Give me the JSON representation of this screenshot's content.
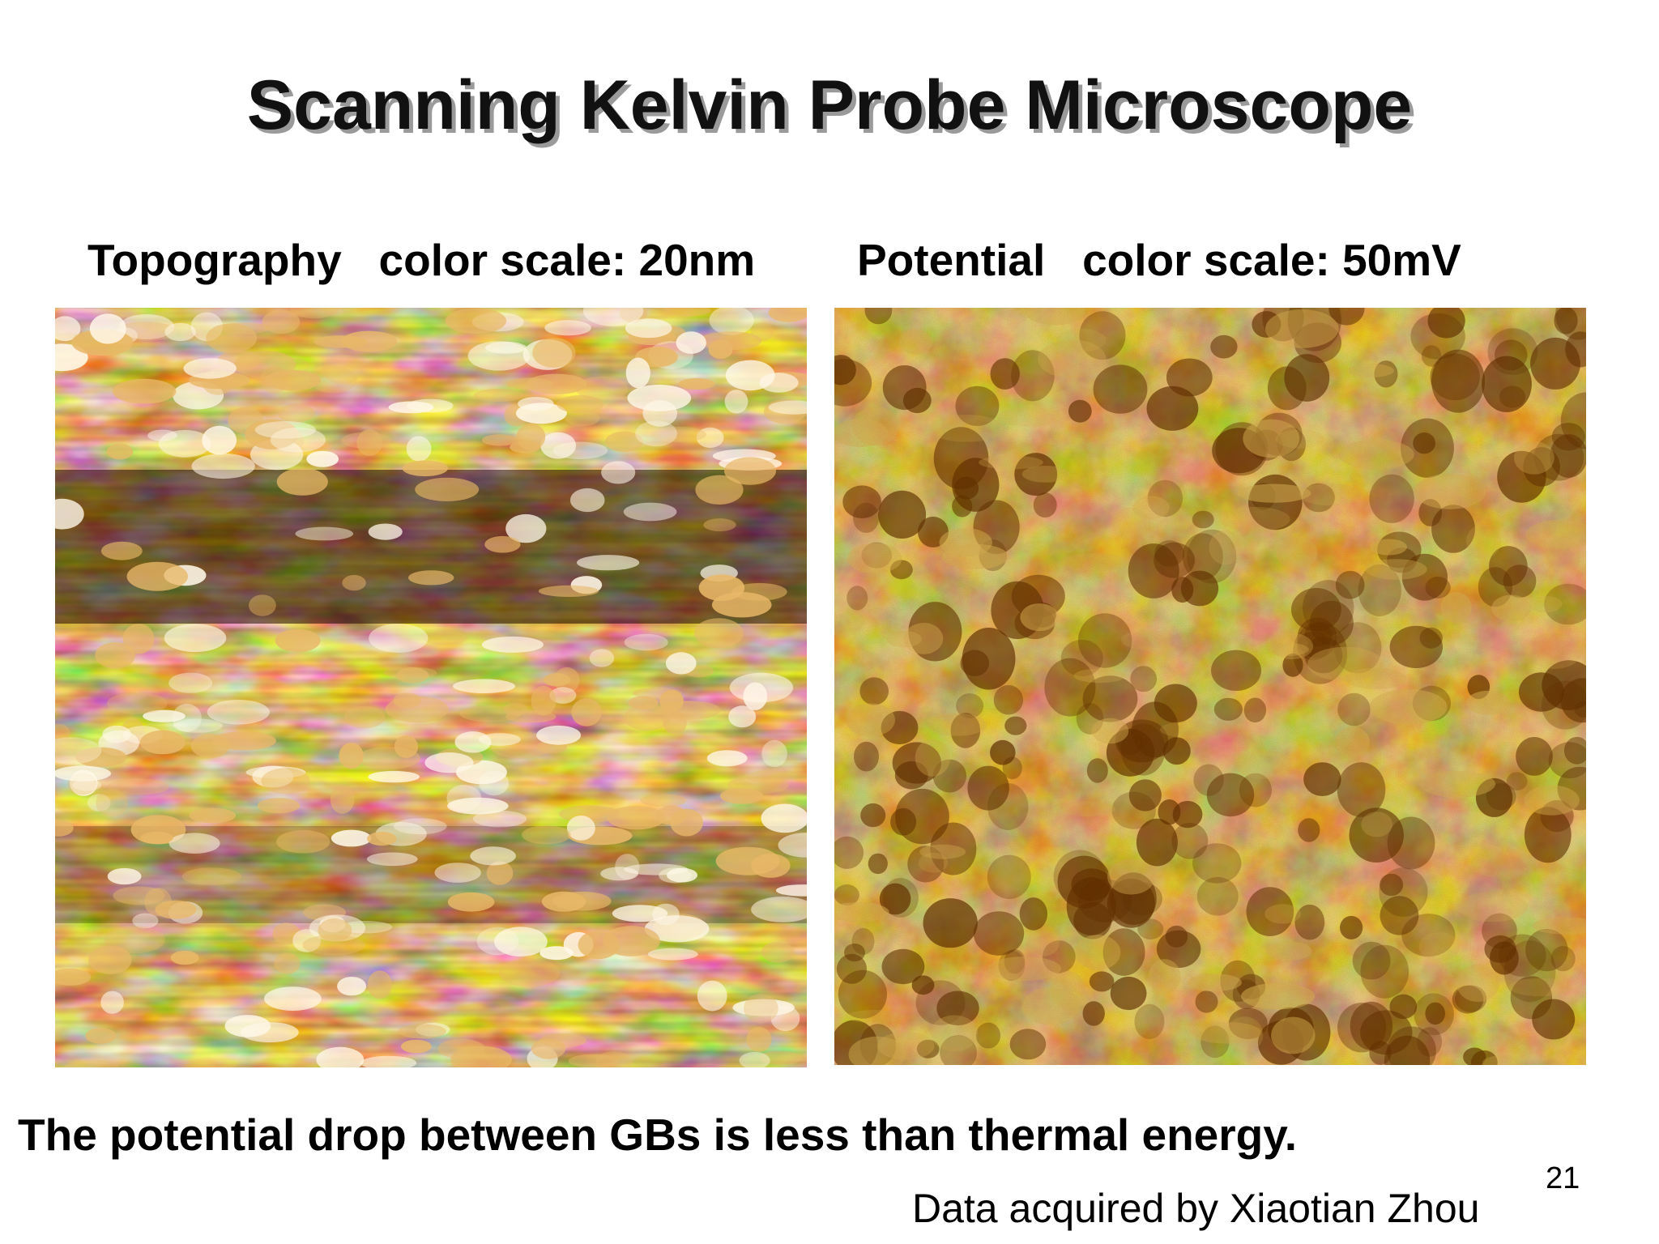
{
  "slide": {
    "title": "Scanning Kelvin Probe Microscope",
    "left_panel": {
      "label": "Topography   color scale: 20nm",
      "image_icon": "afm-topography-image"
    },
    "right_panel": {
      "label": "Potential   color scale: 50mV",
      "image_icon": "kelvin-potential-image"
    },
    "caption": "The potential drop between GBs is less than thermal energy.",
    "credit": "Data acquired by Xiaotian Zhou",
    "page_number": "21"
  },
  "colors": {
    "colormap_dark": "#2a0c00",
    "colormap_mid": "#b8741a",
    "colormap_light": "#fff8e8",
    "potential_dark": "#5a2800",
    "potential_mid": "#a8640f",
    "potential_light": "#d8b058"
  }
}
